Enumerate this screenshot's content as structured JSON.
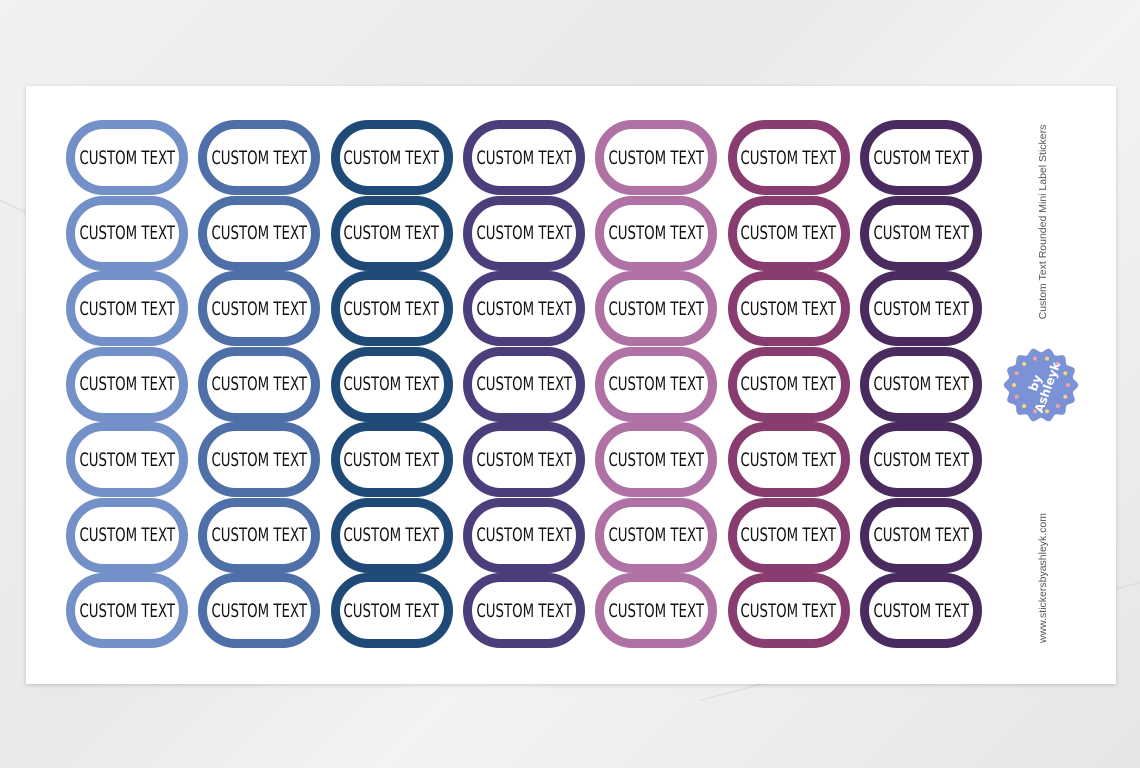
{
  "sheet": {
    "title": "Custom Text Rounded Mini Label Stickers",
    "website": "www.stickersbyashleyk.com",
    "logo_text": "by AshleyK",
    "logo_color": "#7b93d6"
  },
  "stickers": {
    "label": "CUSTOM TEXT",
    "rows": 7,
    "column_colors": [
      "#7391c8",
      "#4f6fa9",
      "#1f4a78",
      "#4b3e7b",
      "#b071a4",
      "#893c6f",
      "#4a2b5f"
    ]
  }
}
